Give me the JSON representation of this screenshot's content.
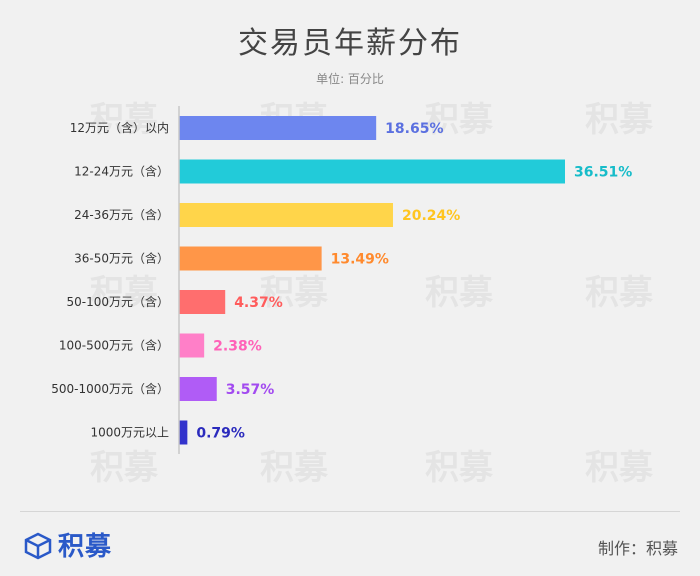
{
  "title": "交易员年薪分布",
  "subtitle": "单位: 百分比",
  "watermark_text": "积募",
  "chart_data": {
    "type": "bar",
    "orientation": "horizontal",
    "title": "交易员年薪分布",
    "subtitle": "单位: 百分比",
    "categories": [
      "12万元（含）以内",
      "12-24万元（含）",
      "24-36万元（含）",
      "36-50万元（含）",
      "50-100万元（含）",
      "100-500万元（含）",
      "500-1000万元（含）",
      "1000万元以上"
    ],
    "values": [
      18.65,
      36.51,
      20.24,
      13.49,
      4.37,
      2.38,
      3.57,
      0.79
    ],
    "labels": [
      "18.65%",
      "36.51%",
      "20.24%",
      "13.49%",
      "4.37%",
      "2.38%",
      "3.57%",
      "0.79%"
    ],
    "colors": [
      "#6d86ef",
      "#22cbd9",
      "#ffd54a",
      "#ff9648",
      "#ff6e6e",
      "#ff7fc8",
      "#b05cf6",
      "#3333cc"
    ],
    "label_colors": [
      "#5b70e0",
      "#17bcc9",
      "#ffc51f",
      "#ff8a2e",
      "#ff5c5c",
      "#ff62b8",
      "#a24af0",
      "#2b2bbd"
    ],
    "grid": false,
    "legend": "none"
  },
  "footer": {
    "logo_text": "积募",
    "credit": "制作：积募"
  }
}
